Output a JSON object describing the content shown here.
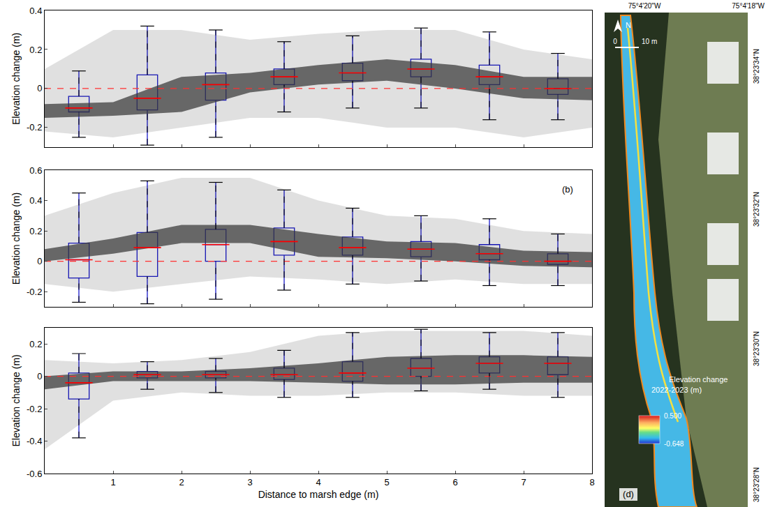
{
  "chart_data": [
    {
      "type": "box",
      "y_label": "Elevation change (m)",
      "xlim": [
        0,
        8
      ],
      "xticks": [
        1,
        2,
        3,
        4,
        5,
        6,
        7,
        8
      ],
      "ylim": [
        -0.3,
        0.4
      ],
      "yticks": [
        -0.2,
        0,
        0.2,
        0.4
      ],
      "grid": false,
      "tick_labels": "y",
      "reference_y": 0,
      "color": "#1a1acc",
      "boxes": {
        "x": [
          0.5,
          1.5,
          2.5,
          3.5,
          4.5,
          5.5,
          6.5,
          7.5
        ],
        "lower_whisker": [
          -0.25,
          -0.29,
          -0.25,
          -0.12,
          -0.1,
          -0.1,
          -0.16,
          -0.16
        ],
        "q1": [
          -0.12,
          -0.11,
          -0.06,
          0.02,
          0.04,
          0.06,
          0.02,
          -0.03
        ],
        "median": [
          -0.1,
          -0.05,
          0.02,
          0.06,
          0.08,
          0.1,
          0.06,
          0.0
        ],
        "q3": [
          -0.04,
          0.07,
          0.08,
          0.1,
          0.13,
          0.15,
          0.12,
          0.05
        ],
        "upper_whisker": [
          0.09,
          0.32,
          0.3,
          0.24,
          0.27,
          0.31,
          0.29,
          0.18
        ]
      },
      "cloud": {
        "x": [
          0,
          1,
          2,
          3,
          4,
          5,
          6,
          7,
          8
        ],
        "outer_lower": [
          -0.22,
          -0.25,
          -0.2,
          -0.15,
          -0.15,
          -0.2,
          -0.2,
          -0.25,
          -0.2
        ],
        "outer_upper": [
          0.1,
          0.3,
          0.3,
          0.25,
          0.28,
          0.3,
          0.3,
          0.2,
          0.15
        ],
        "core_lower": [
          -0.15,
          -0.14,
          -0.12,
          -0.02,
          0.02,
          0.04,
          0.0,
          -0.05,
          -0.06
        ],
        "core_upper": [
          -0.08,
          -0.07,
          0.06,
          0.08,
          0.12,
          0.15,
          0.12,
          0.06,
          0.06
        ]
      }
    },
    {
      "type": "box",
      "y_label": "Elevation change (m)",
      "panel_label": "(b)",
      "xlim": [
        0,
        8
      ],
      "xticks": [
        1,
        2,
        3,
        4,
        5,
        6,
        7,
        8
      ],
      "ylim": [
        -0.3,
        0.6
      ],
      "yticks": [
        -0.2,
        0,
        0.2,
        0.4,
        0.6
      ],
      "grid": false,
      "tick_labels": "y",
      "reference_y": 0,
      "color": "#1a1acc",
      "boxes": {
        "x": [
          0.5,
          1.5,
          2.5,
          3.5,
          4.5,
          5.5,
          6.5,
          7.5
        ],
        "lower_whisker": [
          -0.27,
          -0.28,
          -0.25,
          -0.19,
          -0.15,
          -0.13,
          -0.16,
          -0.16
        ],
        "q1": [
          -0.11,
          -0.1,
          0.0,
          0.04,
          0.04,
          0.03,
          0.01,
          -0.02
        ],
        "median": [
          0.01,
          0.09,
          0.11,
          0.13,
          0.09,
          0.08,
          0.05,
          0.0
        ],
        "q3": [
          0.12,
          0.19,
          0.21,
          0.22,
          0.16,
          0.13,
          0.11,
          0.05
        ],
        "upper_whisker": [
          0.45,
          0.53,
          0.52,
          0.47,
          0.35,
          0.3,
          0.28,
          0.18
        ]
      },
      "cloud": {
        "x": [
          0,
          1,
          2,
          3,
          4,
          5,
          6,
          7,
          8
        ],
        "outer_lower": [
          -0.15,
          -0.2,
          -0.15,
          -0.1,
          -0.12,
          -0.15,
          -0.12,
          -0.15,
          -0.15
        ],
        "outer_upper": [
          0.3,
          0.45,
          0.55,
          0.55,
          0.4,
          0.3,
          0.28,
          0.2,
          0.18
        ],
        "core_lower": [
          0.0,
          0.05,
          0.12,
          0.12,
          0.03,
          0.02,
          0.0,
          -0.03,
          -0.04
        ],
        "core_upper": [
          0.08,
          0.15,
          0.24,
          0.24,
          0.18,
          0.13,
          0.12,
          0.07,
          0.06
        ]
      }
    },
    {
      "type": "box",
      "y_label": "Elevation change (m)",
      "x_label": "Distance to marsh edge (m)",
      "xlim": [
        0,
        8
      ],
      "xticks": [
        1,
        2,
        3,
        4,
        5,
        6,
        7,
        8
      ],
      "ylim": [
        -0.6,
        0.3
      ],
      "yticks": [
        -0.6,
        -0.4,
        -0.2,
        0,
        0.2
      ],
      "grid": false,
      "reference_y": 0,
      "color": "#1a1acc",
      "boxes": {
        "x": [
          0.5,
          1.5,
          2.5,
          3.5,
          4.5,
          5.5,
          6.5,
          7.5
        ],
        "lower_whisker": [
          -0.38,
          -0.08,
          -0.1,
          -0.13,
          -0.13,
          -0.09,
          -0.08,
          -0.13
        ],
        "q1": [
          -0.14,
          -0.01,
          -0.01,
          -0.02,
          -0.03,
          0.0,
          0.02,
          0.01
        ],
        "median": [
          -0.04,
          0.01,
          0.01,
          0.01,
          0.02,
          0.05,
          0.08,
          0.08
        ],
        "q3": [
          0.02,
          0.03,
          0.03,
          0.05,
          0.09,
          0.11,
          0.12,
          0.12
        ],
        "upper_whisker": [
          0.14,
          0.09,
          0.11,
          0.16,
          0.27,
          0.29,
          0.27,
          0.27
        ]
      },
      "cloud": {
        "x": [
          0,
          1,
          2,
          3,
          4,
          5,
          6,
          7,
          8
        ],
        "outer_lower": [
          -0.45,
          -0.15,
          -0.1,
          -0.12,
          -0.12,
          -0.1,
          -0.1,
          -0.12,
          -0.12
        ],
        "outer_upper": [
          0.1,
          0.08,
          0.1,
          0.15,
          0.25,
          0.28,
          0.28,
          0.28,
          0.25
        ],
        "core_lower": [
          -0.08,
          -0.03,
          -0.03,
          -0.03,
          -0.04,
          -0.05,
          -0.05,
          -0.04,
          -0.04
        ],
        "core_upper": [
          0.0,
          0.03,
          0.03,
          0.05,
          0.08,
          0.12,
          0.13,
          0.13,
          0.12
        ]
      }
    }
  ],
  "map_panel": {
    "panel_label": "(d)",
    "north": "N",
    "scale_labels": [
      "0",
      "10 m"
    ],
    "longitudes": [
      "75°4'20\"W",
      "75°4'18\"W"
    ],
    "latitudes": [
      "38°23'34\"N",
      "38°23'32\"N",
      "38°23'30\"N",
      "38°23'28\"N"
    ],
    "colorbar_title": "Elevation change",
    "colorbar_subtitle": "2022-2023 (m)",
    "colorbar_range": [
      -0.648,
      0.5
    ],
    "colorbar_ticks": [
      {
        "value": 0.5,
        "label": "0.500"
      },
      {
        "value": -0.648,
        "label": "-0.648"
      }
    ]
  }
}
